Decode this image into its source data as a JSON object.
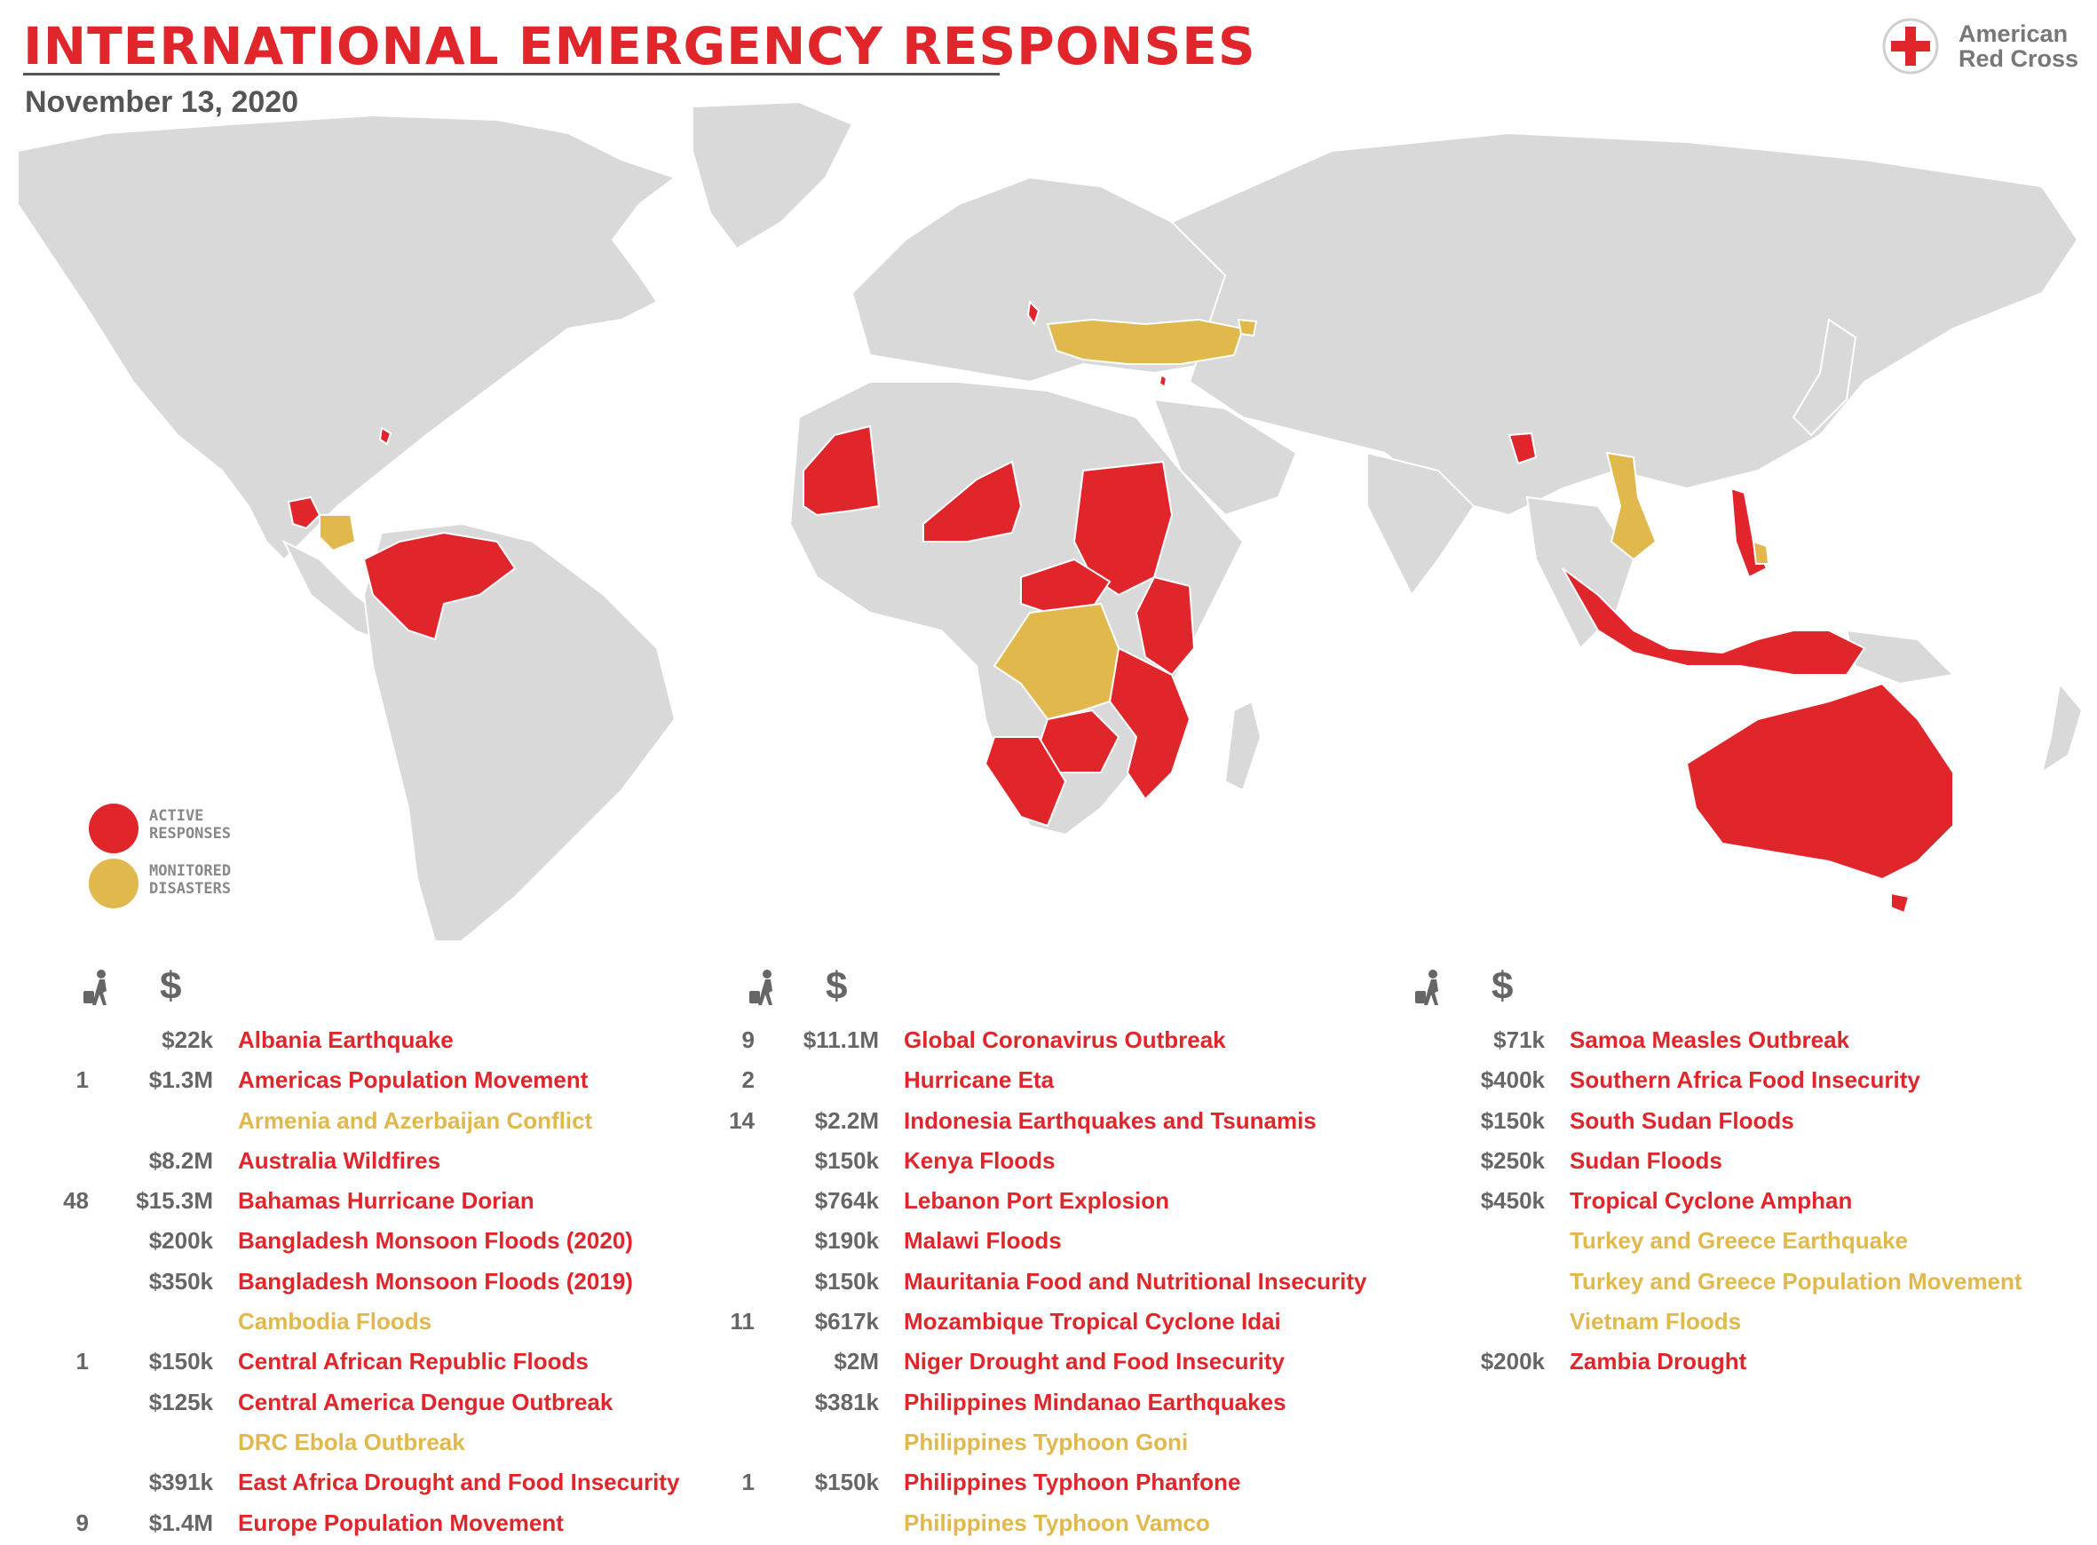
{
  "header": {
    "title": "INTERNATIONAL EMERGENCY RESPONSES",
    "date": "November 13, 2020",
    "logo_line1": "American",
    "logo_line2": "Red Cross"
  },
  "colors": {
    "active": "#e0262b",
    "monitored": "#e1b84c",
    "land": "#d9d9d9",
    "border": "#ffffff",
    "text_gray": "#666666"
  },
  "legend": {
    "active_line1": "ACTIVE",
    "active_line2": "RESPONSES",
    "monitored_line1": "MONITORED",
    "monitored_line2": "DISASTERS"
  },
  "table_header": {
    "people_icon": "person-with-luggage-icon",
    "dollar_symbol": "$"
  },
  "columns": [
    [
      {
        "people": "",
        "amount": "$22k",
        "name": "Albania Earthquake",
        "status": "active"
      },
      {
        "people": "1",
        "amount": "$1.3M",
        "name": "Americas Population Movement",
        "status": "active"
      },
      {
        "people": "",
        "amount": "",
        "name": "Armenia and Azerbaijan Conflict",
        "status": "monitored"
      },
      {
        "people": "",
        "amount": "$8.2M",
        "name": "Australia Wildfires",
        "status": "active"
      },
      {
        "people": "48",
        "amount": "$15.3M",
        "name": "Bahamas Hurricane Dorian",
        "status": "active"
      },
      {
        "people": "",
        "amount": "$200k",
        "name": "Bangladesh Monsoon Floods (2020)",
        "status": "active"
      },
      {
        "people": "",
        "amount": "$350k",
        "name": "Bangladesh Monsoon Floods (2019)",
        "status": "active"
      },
      {
        "people": "",
        "amount": "",
        "name": "Cambodia Floods",
        "status": "monitored"
      },
      {
        "people": "1",
        "amount": "$150k",
        "name": "Central African Republic Floods",
        "status": "active"
      },
      {
        "people": "",
        "amount": "$125k",
        "name": "Central America Dengue Outbreak",
        "status": "active"
      },
      {
        "people": "",
        "amount": "",
        "name": "DRC Ebola Outbreak",
        "status": "monitored"
      },
      {
        "people": "",
        "amount": "$391k",
        "name": "East Africa Drought and Food Insecurity",
        "status": "active"
      },
      {
        "people": "9",
        "amount": "$1.4M",
        "name": "Europe Population Movement",
        "status": "active"
      }
    ],
    [
      {
        "people": "9",
        "amount": "$11.1M",
        "name": "Global Coronavirus Outbreak",
        "status": "active"
      },
      {
        "people": "2",
        "amount": "",
        "name": "Hurricane Eta",
        "status": "active"
      },
      {
        "people": "14",
        "amount": "$2.2M",
        "name": "Indonesia Earthquakes and Tsunamis",
        "status": "active"
      },
      {
        "people": "",
        "amount": "$150k",
        "name": "Kenya Floods",
        "status": "active"
      },
      {
        "people": "",
        "amount": "$764k",
        "name": "Lebanon Port Explosion",
        "status": "active"
      },
      {
        "people": "",
        "amount": "$190k",
        "name": "Malawi Floods",
        "status": "active"
      },
      {
        "people": "",
        "amount": "$150k",
        "name": "Mauritania Food and Nutritional Insecurity",
        "status": "active"
      },
      {
        "people": "11",
        "amount": "$617k",
        "name": "Mozambique Tropical Cyclone Idai",
        "status": "active"
      },
      {
        "people": "",
        "amount": "$2M",
        "name": "Niger Drought and Food Insecurity",
        "status": "active"
      },
      {
        "people": "",
        "amount": "$381k",
        "name": "Philippines Mindanao Earthquakes",
        "status": "active"
      },
      {
        "people": "",
        "amount": "",
        "name": "Philippines Typhoon Goni",
        "status": "monitored"
      },
      {
        "people": "1",
        "amount": "$150k",
        "name": "Philippines Typhoon Phanfone",
        "status": "active"
      },
      {
        "people": "",
        "amount": "",
        "name": "Philippines Typhoon Vamco",
        "status": "monitored"
      }
    ],
    [
      {
        "people": "",
        "amount": "$71k",
        "name": "Samoa Measles Outbreak",
        "status": "active"
      },
      {
        "people": "",
        "amount": "$400k",
        "name": "Southern Africa Food Insecurity",
        "status": "active"
      },
      {
        "people": "",
        "amount": "$150k",
        "name": "South Sudan Floods",
        "status": "active"
      },
      {
        "people": "",
        "amount": "$250k",
        "name": "Sudan Floods",
        "status": "active"
      },
      {
        "people": "",
        "amount": "$450k",
        "name": "Tropical Cyclone Amphan",
        "status": "active"
      },
      {
        "people": "",
        "amount": "",
        "name": "Turkey and Greece Earthquake",
        "status": "monitored"
      },
      {
        "people": "",
        "amount": "",
        "name": "Turkey and Greece Population Movement",
        "status": "monitored"
      },
      {
        "people": "",
        "amount": "",
        "name": "Vietnam Floods",
        "status": "monitored"
      },
      {
        "people": "",
        "amount": "$200k",
        "name": "Zambia Drought",
        "status": "active"
      }
    ]
  ]
}
